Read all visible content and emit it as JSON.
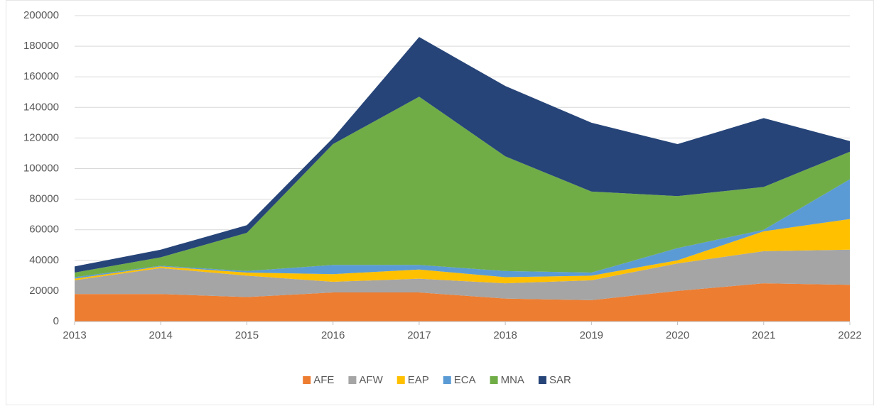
{
  "chart_data": {
    "type": "stacked_area",
    "x": [
      2013,
      2014,
      2015,
      2016,
      2017,
      2018,
      2019,
      2020,
      2021,
      2022
    ],
    "xlim": [
      2013,
      2022
    ],
    "xticks": [
      2013,
      2014,
      2015,
      2016,
      2017,
      2018,
      2019,
      2020,
      2021,
      2022
    ],
    "ylim": [
      0,
      200000
    ],
    "yticks": [
      0,
      20000,
      40000,
      60000,
      80000,
      100000,
      120000,
      140000,
      160000,
      180000,
      200000
    ],
    "grid": true,
    "legend": "bottom",
    "series": [
      {
        "name": "AFE",
        "color": "#ed7d31",
        "values": [
          18000,
          18000,
          16000,
          19000,
          19000,
          15000,
          14000,
          20000,
          25000,
          24000
        ]
      },
      {
        "name": "AFW",
        "color": "#a5a5a5",
        "values": [
          9000,
          17000,
          14000,
          7000,
          9000,
          10000,
          13000,
          18000,
          21000,
          23000
        ]
      },
      {
        "name": "EAP",
        "color": "#ffc000",
        "values": [
          1000,
          1000,
          2000,
          5000,
          6000,
          4000,
          3000,
          2000,
          13000,
          20000
        ]
      },
      {
        "name": "ECA",
        "color": "#5b9bd5",
        "values": [
          1000,
          500,
          1000,
          6000,
          3000,
          4000,
          2000,
          8000,
          1000,
          26000
        ]
      },
      {
        "name": "MNA",
        "color": "#70ad47",
        "values": [
          3000,
          5500,
          25000,
          79000,
          110000,
          75000,
          53000,
          34000,
          28000,
          18000
        ]
      },
      {
        "name": "SAR",
        "color": "#264478",
        "values": [
          4000,
          5000,
          5000,
          4000,
          39000,
          46000,
          45000,
          34000,
          45000,
          7000
        ]
      }
    ]
  }
}
